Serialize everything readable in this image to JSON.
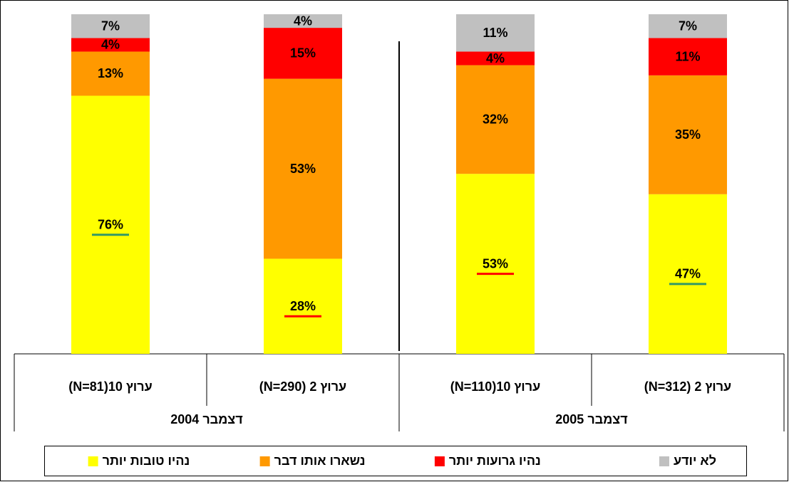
{
  "chart_data": {
    "type": "stacked_bar",
    "categories": [
      "ערוץ 10(N=81)",
      "ערוץ 2 (N=290)",
      "ערוץ 10(N=110)",
      "ערוץ 2 (N=312)"
    ],
    "groups": [
      {
        "label": "דצמבר 2004",
        "span": 2
      },
      {
        "label": "דצמבר 2005",
        "span": 2
      }
    ],
    "series": [
      {
        "name": "נהיו טובות יותר",
        "color": "#ffff00",
        "values": [
          76,
          28,
          53,
          47
        ],
        "value_labels": [
          "76%",
          "28%",
          "53%",
          "47%"
        ],
        "underline_colors": [
          "#339966",
          "#ff0000",
          "#ff0000",
          "#339966"
        ]
      },
      {
        "name": "נשארו אותו דבר",
        "color": "#ff9900",
        "values": [
          13,
          53,
          32,
          35
        ],
        "value_labels": [
          "13%",
          "53%",
          "32%",
          "35%"
        ]
      },
      {
        "name": "נהיו גרועות יותר",
        "color": "#ff0000",
        "values": [
          4,
          15,
          4,
          11
        ],
        "value_labels": [
          "4%",
          "15%",
          "4%",
          "11%"
        ]
      },
      {
        "name": "לא יודע",
        "color": "#c0c0c0",
        "values": [
          7,
          4,
          11,
          7
        ],
        "value_labels": [
          "7%",
          "4%",
          "11%",
          "7%"
        ]
      }
    ]
  }
}
